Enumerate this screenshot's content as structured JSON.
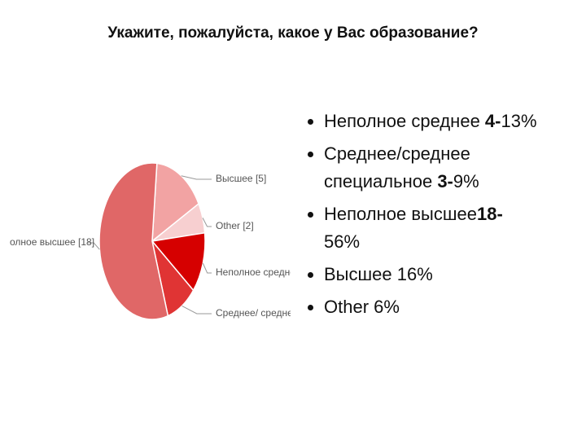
{
  "title": "Укажите, пожалуйста, какое у Вас образование?",
  "chart_data": {
    "type": "pie",
    "categories": [
      "Высшее [5]",
      "Other [2]",
      "Неполное средне",
      "Среднее/ средне",
      "олное высшее [18]"
    ],
    "values": [
      5,
      2,
      4,
      3,
      18
    ],
    "colors": [
      "#f2a3a3",
      "#f7cfd0",
      "#d60000",
      "#e03434",
      "#e06767"
    ]
  },
  "bullets": [
    {
      "parts": [
        {
          "text": "Неполное среднее "
        },
        {
          "text": "4-",
          "bold": true
        },
        {
          "text": "13%"
        }
      ]
    },
    {
      "parts": [
        {
          "text": "Среднее/среднее специальное "
        },
        {
          "text": "3-",
          "bold": true
        },
        {
          "text": "9%"
        }
      ]
    },
    {
      "parts": [
        {
          "text": "Неполное высшее"
        },
        {
          "text": "18-",
          "bold": true
        },
        {
          "text": "56%"
        }
      ]
    },
    {
      "parts": [
        {
          "text": "Высшее 16%"
        }
      ]
    },
    {
      "parts": [
        {
          "text": "Other 6%"
        }
      ]
    }
  ]
}
